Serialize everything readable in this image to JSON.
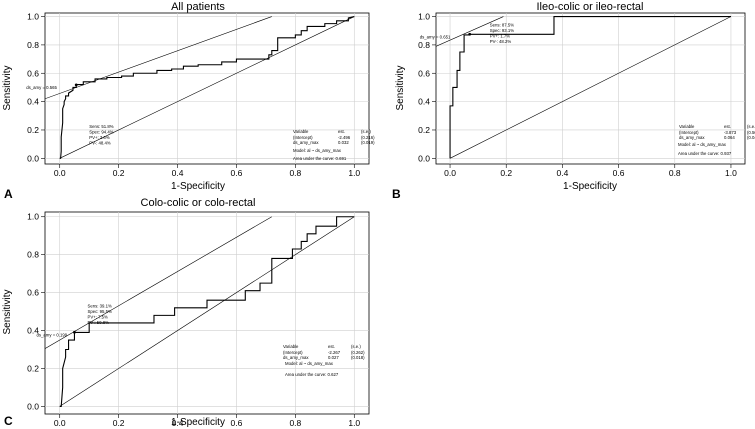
{
  "chart_data": [
    {
      "type": "line",
      "panel_letter": "A",
      "title": "All patients",
      "xlabel": "1-Specificity",
      "ylabel": "Sensitivity",
      "xlim": [
        0,
        1
      ],
      "ylim": [
        0,
        1
      ],
      "xticks": [
        "0.0",
        "0.2",
        "0.4",
        "0.6",
        "0.8",
        "1.0"
      ],
      "yticks": [
        "0.0",
        "0.2",
        "0.4",
        "0.6",
        "0.8",
        "1.0"
      ],
      "grid": true,
      "series": [
        {
          "name": "ROC",
          "x": [
            0,
            0.003,
            0.005,
            0.005,
            0.01,
            0.01,
            0.015,
            0.015,
            0.02,
            0.02,
            0.03,
            0.03,
            0.045,
            0.045,
            0.056,
            0.056,
            0.08,
            0.08,
            0.12,
            0.12,
            0.16,
            0.16,
            0.21,
            0.21,
            0.25,
            0.25,
            0.33,
            0.33,
            0.38,
            0.38,
            0.42,
            0.42,
            0.47,
            0.47,
            0.55,
            0.55,
            0.6,
            0.6,
            0.71,
            0.71,
            0.72,
            0.72,
            0.74,
            0.74,
            0.8,
            0.8,
            0.82,
            0.82,
            0.84,
            0.84,
            0.9,
            0.9,
            0.94,
            0.94,
            0.98,
            0.98,
            1.0
          ],
          "y": [
            0,
            0,
            0.05,
            0.15,
            0.25,
            0.35,
            0.38,
            0.4,
            0.42,
            0.44,
            0.44,
            0.46,
            0.48,
            0.5,
            0.5,
            0.52,
            0.52,
            0.54,
            0.54,
            0.56,
            0.56,
            0.57,
            0.57,
            0.58,
            0.58,
            0.6,
            0.6,
            0.62,
            0.62,
            0.63,
            0.63,
            0.65,
            0.65,
            0.66,
            0.66,
            0.68,
            0.68,
            0.7,
            0.7,
            0.73,
            0.73,
            0.76,
            0.76,
            0.85,
            0.85,
            0.87,
            0.87,
            0.9,
            0.9,
            0.93,
            0.93,
            0.95,
            0.95,
            0.97,
            0.97,
            0.99,
            1.0
          ]
        }
      ],
      "tangent": {
        "x0": -0.05,
        "y0": 0.42,
        "x1": 0.72,
        "y1": 1.0
      },
      "cutoff_point": {
        "x": 0.056,
        "y": 0.518
      },
      "cutoff_label": "ds_amy = 0.565",
      "stats": [
        "Sens: 51.8%",
        "Spec: 94.4%",
        "PV+: 3.6%",
        "PV-: 48.4%"
      ],
      "table": {
        "header": [
          "Variable",
          "est.",
          "(s.e.)"
        ],
        "rows": [
          [
            "(Intercept)",
            "-2.496",
            "(0.216)"
          ],
          [
            "ds_amy_max",
            "0.032",
            "(0.019)"
          ]
        ]
      },
      "model": "Model:  al ~ ds_amy_max",
      "auc": "Area under the curve: 0.691"
    },
    {
      "type": "line",
      "panel_letter": "B",
      "title": "Ileo-colic or ileo-rectal",
      "xlabel": "1-Specificity",
      "ylabel": "Sensitivity",
      "xlim": [
        0,
        1
      ],
      "ylim": [
        0,
        1
      ],
      "xticks": [
        "0.0",
        "0.2",
        "0.4",
        "0.6",
        "0.8",
        "1.0"
      ],
      "yticks": [
        "0.0",
        "0.2",
        "0.4",
        "0.6",
        "0.8",
        "1.0"
      ],
      "grid": true,
      "series": [
        {
          "name": "ROC",
          "x": [
            0,
            0,
            0.01,
            0.01,
            0.025,
            0.025,
            0.035,
            0.035,
            0.05,
            0.05,
            0.07,
            0.07,
            0.37,
            0.37,
            1.0
          ],
          "y": [
            0,
            0.37,
            0.37,
            0.5,
            0.5,
            0.62,
            0.62,
            0.75,
            0.75,
            0.87,
            0.87,
            0.875,
            0.875,
            1.0,
            1.0
          ]
        }
      ],
      "tangent": {
        "x0": -0.05,
        "y0": 0.79,
        "x1": 0.19,
        "y1": 1.0
      },
      "cutoff_point": {
        "x": 0.07,
        "y": 0.875
      },
      "cutoff_label": "ds_amy = 0.651",
      "stats": [
        "Sens: 87.5%",
        "Spec: 93.1%",
        "PV+: 1.7%",
        "PV-: 48.2%"
      ],
      "table": {
        "header": [
          "Variable",
          "est.",
          "(s.e.)"
        ],
        "rows": [
          [
            "(Intercept)",
            "-3.873",
            "(0.506)"
          ],
          [
            "ds_amy_max",
            "0.064",
            "(0.042)"
          ]
        ]
      },
      "model": "Model:  al ~ ds_amy_max",
      "auc": "Area under the curve: 0.937"
    },
    {
      "type": "line",
      "panel_letter": "C",
      "title": "Colo-colic or colo-rectal",
      "xlabel": "1-Specificity",
      "ylabel": "Sensitivity",
      "xlim": [
        0,
        1
      ],
      "ylim": [
        0,
        1
      ],
      "xticks": [
        "0.0",
        "0.2",
        "0.4",
        "0.6",
        "0.8",
        "1.0"
      ],
      "yticks": [
        "0.0",
        "0.2",
        "0.4",
        "0.6",
        "0.8",
        "1.0"
      ],
      "grid": true,
      "series": [
        {
          "name": "ROC",
          "x": [
            0,
            0.005,
            0.01,
            0.01,
            0.02,
            0.02,
            0.03,
            0.03,
            0.05,
            0.05,
            0.1,
            0.1,
            0.32,
            0.32,
            0.39,
            0.39,
            0.5,
            0.5,
            0.63,
            0.63,
            0.68,
            0.68,
            0.72,
            0.72,
            0.79,
            0.79,
            0.82,
            0.82,
            0.84,
            0.84,
            0.87,
            0.87,
            0.94,
            0.94,
            1.0
          ],
          "y": [
            0,
            0,
            0.1,
            0.2,
            0.26,
            0.3,
            0.3,
            0.35,
            0.35,
            0.39,
            0.39,
            0.44,
            0.44,
            0.48,
            0.48,
            0.52,
            0.52,
            0.56,
            0.56,
            0.61,
            0.61,
            0.65,
            0.65,
            0.78,
            0.78,
            0.83,
            0.83,
            0.87,
            0.87,
            0.91,
            0.91,
            0.95,
            0.95,
            1.0,
            1.0
          ]
        }
      ],
      "tangent": {
        "x0": -0.05,
        "y0": 0.305,
        "x1": 0.72,
        "y1": 1.0
      },
      "cutoff_point": {
        "x": 0.05,
        "y": 0.391
      },
      "cutoff_label": "ds_amy = 0.199",
      "stats": [
        "Sens: 39.1%",
        "Spec: 95.5%",
        "PV+: 7.5%",
        "PV-: 50.8%"
      ],
      "table": {
        "header": [
          "Variable",
          "est.",
          "(s.e.)"
        ],
        "rows": [
          [
            "(Intercept)",
            "-2.267",
            "(0.262)"
          ],
          [
            "ds_amy_max",
            "0.027",
            "(0.018)"
          ]
        ]
      },
      "model": "Model:  al ~ ds_amy_max",
      "auc": "Area under the curve: 0.627"
    }
  ]
}
